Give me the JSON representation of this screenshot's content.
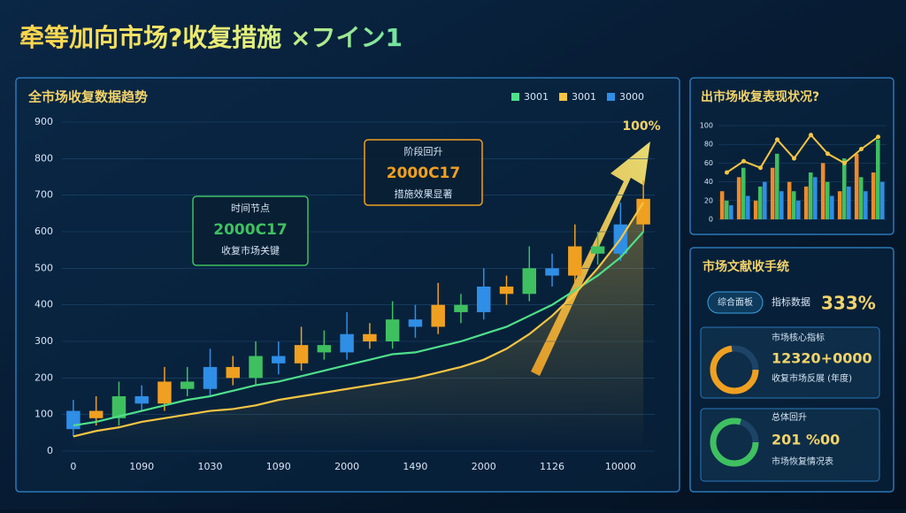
{
  "header": {
    "title": "牵等加向市场?收复措施 ×フイン1"
  },
  "chart_data": [
    {
      "type": "candlestick",
      "title": "全市场收复数据趋势",
      "name": "3000",
      "categories": [
        "0",
        null,
        null,
        "1090",
        null,
        null,
        "1030",
        null,
        null,
        "1090",
        null,
        null,
        "2000",
        null,
        null,
        "1490",
        null,
        null,
        "2000",
        null,
        null,
        "1126",
        null,
        null,
        "10000",
        null
      ],
      "open": [
        60,
        110,
        90,
        150,
        130,
        190,
        170,
        230,
        200,
        260,
        240,
        290,
        270,
        320,
        300,
        360,
        340,
        400,
        380,
        450,
        430,
        500,
        480,
        560,
        540,
        620
      ],
      "close": [
        110,
        90,
        150,
        130,
        190,
        170,
        230,
        200,
        260,
        240,
        290,
        270,
        320,
        300,
        360,
        340,
        400,
        380,
        450,
        430,
        500,
        480,
        560,
        540,
        620,
        690
      ],
      "high": [
        140,
        150,
        190,
        180,
        230,
        230,
        280,
        260,
        300,
        300,
        340,
        330,
        380,
        350,
        410,
        400,
        460,
        430,
        500,
        480,
        560,
        540,
        620,
        600,
        680,
        740
      ],
      "low": [
        40,
        70,
        70,
        110,
        110,
        150,
        150,
        180,
        180,
        210,
        220,
        250,
        250,
        280,
        280,
        310,
        320,
        350,
        360,
        400,
        410,
        450,
        460,
        510,
        520,
        600
      ],
      "palette": [
        "#2f8ee6",
        "#f0a020",
        "#3fc060"
      ],
      "series": [
        {
          "name": "3001",
          "color": "#4fe08a",
          "values": [
            70,
            80,
            95,
            110,
            125,
            140,
            150,
            165,
            180,
            190,
            205,
            220,
            235,
            250,
            265,
            270,
            285,
            300,
            320,
            340,
            370,
            400,
            440,
            480,
            530,
            600
          ]
        },
        {
          "name": "3001",
          "color": "#f5c542",
          "values": [
            40,
            55,
            65,
            80,
            90,
            100,
            110,
            115,
            125,
            140,
            150,
            160,
            170,
            180,
            190,
            200,
            215,
            230,
            250,
            280,
            320,
            370,
            430,
            500,
            580,
            680
          ]
        }
      ],
      "ylim": [
        0,
        900
      ],
      "yticks": [
        0,
        100,
        200,
        300,
        400,
        500,
        600,
        700,
        800,
        900
      ],
      "annotations": [
        {
          "title": "时间节点",
          "value": "2000C17",
          "text": "收复市场关键",
          "color": "#3fc060"
        },
        {
          "title": "阶段回升",
          "value": "2000C17",
          "text": "措施效果显著",
          "color": "#f0a020"
        }
      ],
      "peak_label": "100%"
    },
    {
      "type": "bar",
      "title": "出市场收复表现状况?",
      "categories": [
        null,
        null,
        null,
        null,
        null,
        null,
        null,
        null,
        null,
        null
      ],
      "series": [
        {
          "color": "#f08a2a",
          "values": [
            30,
            45,
            20,
            55,
            40,
            35,
            60,
            30,
            70,
            50
          ]
        },
        {
          "color": "#3fc060",
          "values": [
            20,
            55,
            35,
            70,
            30,
            50,
            40,
            65,
            45,
            85
          ]
        },
        {
          "color": "#2f8ee6",
          "values": [
            15,
            25,
            40,
            30,
            20,
            45,
            25,
            35,
            30,
            40
          ]
        },
        {
          "type": "line",
          "color": "#f5c542",
          "values": [
            50,
            62,
            55,
            85,
            65,
            90,
            70,
            60,
            75,
            88
          ]
        }
      ],
      "ylim": [
        0,
        100
      ],
      "yticks": [
        0,
        20,
        40,
        60,
        80,
        100
      ]
    }
  ],
  "stats": {
    "title": "市场文献收手统",
    "button": "综合面板",
    "label": "指标数据",
    "value": "333%",
    "cards": [
      {
        "title": "市场核心指标",
        "value": "12320+0000",
        "caption": "收复市场反展 (年度)"
      },
      {
        "title": "总体回升",
        "value": "201 %00",
        "caption": "市场恢复情况表"
      }
    ]
  }
}
